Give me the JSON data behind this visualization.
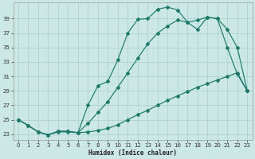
{
  "xlabel": "Humidex (Indice chaleur)",
  "bg_color": "#cce8e5",
  "grid_color": "#aacfcc",
  "line_color": "#1e7a6a",
  "x_ticks": [
    0,
    1,
    2,
    3,
    4,
    5,
    6,
    7,
    8,
    9,
    10,
    11,
    12,
    13,
    14,
    15,
    16,
    17,
    18,
    19,
    20,
    21,
    22,
    23
  ],
  "y_ticks": [
    23,
    25,
    27,
    29,
    31,
    33,
    35,
    37,
    39
  ],
  "xlim": [
    -0.5,
    23.5
  ],
  "ylim": [
    22.2,
    41.2
  ],
  "line1_x": [
    0,
    1,
    2,
    3,
    4,
    5,
    6,
    7,
    8,
    9,
    10,
    11,
    12,
    13,
    14,
    15,
    16,
    17,
    18,
    19,
    20,
    21,
    22,
    23
  ],
  "line1_y": [
    25.0,
    24.2,
    23.3,
    22.9,
    23.4,
    23.4,
    23.2,
    27.0,
    29.7,
    30.3,
    33.3,
    37.0,
    38.9,
    39.0,
    40.3,
    40.6,
    40.2,
    38.5,
    37.5,
    39.2,
    39.0,
    35.0,
    31.3,
    29.0
  ],
  "line2_x": [
    0,
    1,
    2,
    3,
    4,
    5,
    6,
    7,
    8,
    9,
    10,
    11,
    12,
    13,
    14,
    15,
    16,
    17,
    18,
    19,
    20,
    21,
    22,
    23
  ],
  "line2_y": [
    25.0,
    24.2,
    23.3,
    22.9,
    23.4,
    23.4,
    23.2,
    24.5,
    26.0,
    27.5,
    29.5,
    31.5,
    33.5,
    35.5,
    37.0,
    38.0,
    38.8,
    38.5,
    38.8,
    39.2,
    39.0,
    37.5,
    35.0,
    29.0
  ],
  "line3_x": [
    0,
    1,
    2,
    3,
    4,
    5,
    6,
    7,
    8,
    9,
    10,
    11,
    12,
    13,
    14,
    15,
    16,
    17,
    18,
    19,
    20,
    21,
    22,
    23
  ],
  "line3_y": [
    25.0,
    24.2,
    23.3,
    22.9,
    23.3,
    23.3,
    23.2,
    23.3,
    23.5,
    23.8,
    24.3,
    25.0,
    25.7,
    26.3,
    27.0,
    27.7,
    28.3,
    28.9,
    29.5,
    30.0,
    30.5,
    31.0,
    31.5,
    29.0
  ]
}
